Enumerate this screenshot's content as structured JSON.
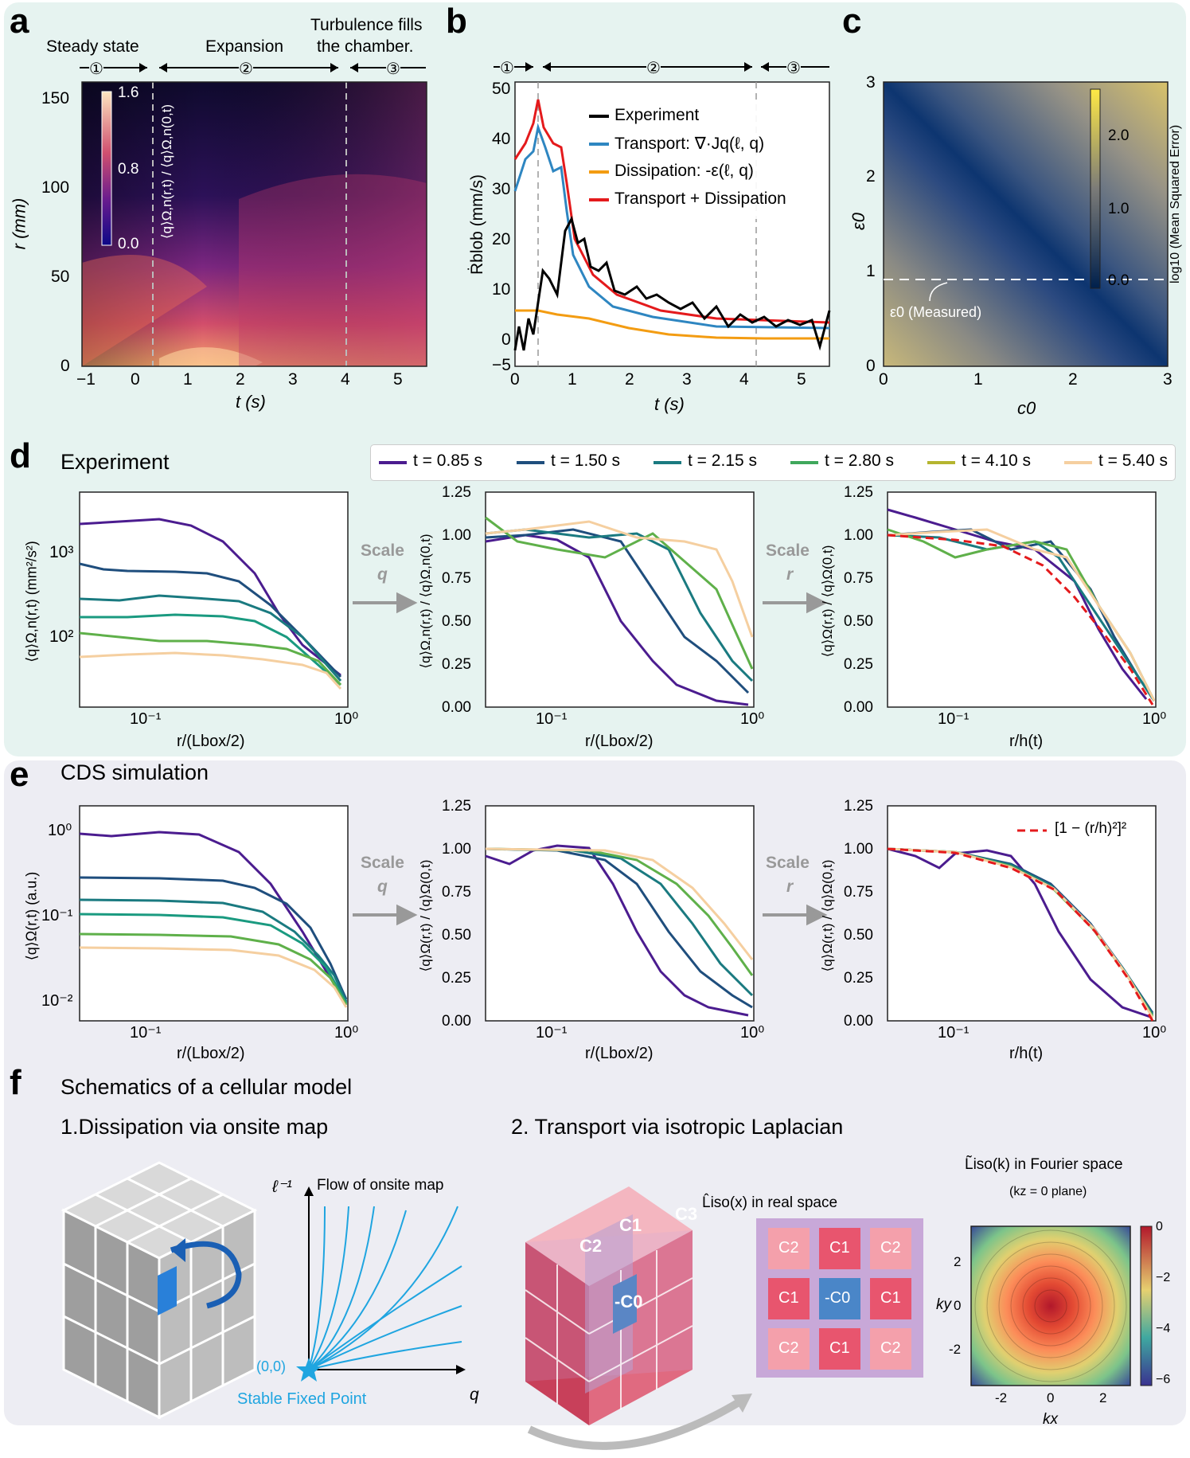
{
  "panels": {
    "a": "a",
    "b": "b",
    "c": "c",
    "d": "d",
    "e": "e",
    "f": "f"
  },
  "panel_a": {
    "phases": [
      "Steady state",
      "Expansion",
      "Turbulence fills",
      "the chamber."
    ],
    "phase_nums": [
      "①",
      "②",
      "③"
    ],
    "xlabel": "t (s)",
    "ylabel": "r (mm)",
    "xticks": [
      "−1",
      "0",
      "1",
      "2",
      "3",
      "4",
      "5"
    ],
    "yticks": [
      "0",
      "50",
      "100",
      "150"
    ],
    "cbar_ticks": [
      "1.6",
      "0.8",
      "0.0"
    ],
    "cbar_label": "⟨q⟩Ω,n(r,t) / ⟨q⟩Ω,n(0,t)"
  },
  "panel_b": {
    "phase_nums": [
      "①",
      "②",
      "③"
    ],
    "xlabel": "t (s)",
    "ylabel": "Ṙblob (mm/s)",
    "xticks": [
      "0",
      "1",
      "2",
      "3",
      "4",
      "5"
    ],
    "yticks": [
      "−5",
      "0",
      "10",
      "20",
      "30",
      "40",
      "50"
    ],
    "legend": [
      {
        "label": "Experiment",
        "color": "#000000"
      },
      {
        "label": "Transport: ∇·Jq(ℓ, q)",
        "color": "#2e86c1"
      },
      {
        "label": "Dissipation: -ε(ℓ, q)",
        "color": "#f39c12"
      },
      {
        "label": "Transport + Dissipation",
        "color": "#e41a1c"
      }
    ]
  },
  "panel_c": {
    "xlabel": "c0",
    "ylabel": "ε0",
    "xticks": [
      "0",
      "1",
      "2",
      "3"
    ],
    "yticks": [
      "0",
      "1",
      "2",
      "3"
    ],
    "cbar_ticks": [
      "2.0",
      "1.0",
      "0.0"
    ],
    "cbar_label": "log10 (Mean Squared Error)",
    "annotation": "ε0 (Measured)"
  },
  "panel_d": {
    "title": "Experiment",
    "legend": [
      {
        "label": "t = 0.85 s",
        "color": "#4b1c8f"
      },
      {
        "label": "t = 1.50 s",
        "color": "#1f4e7d"
      },
      {
        "label": "t = 2.15 s",
        "color": "#1a7a80"
      },
      {
        "label": "t = 2.80 s",
        "color": "#3fa85c"
      },
      {
        "label": "t = 4.10 s",
        "color": "#b5b530"
      },
      {
        "label": "t = 5.40 s",
        "color": "#f5cfa0"
      }
    ],
    "plot1": {
      "ylabel": "⟨q⟩Ω,n(r,t) (mm²/s²)",
      "xlabel": "r/(Lbox/2)",
      "yticks": [
        "10³",
        "10²"
      ],
      "xticks": [
        "10⁻¹",
        "10⁰"
      ]
    },
    "plot2": {
      "ylabel": "⟨q⟩Ω,n(r,t) / ⟨q⟩Ω,n(0,t)",
      "xlabel": "r/(Lbox/2)",
      "yticks": [
        "1.25",
        "1.00",
        "0.75",
        "0.50",
        "0.25",
        "0.00"
      ],
      "xticks": [
        "10⁻¹",
        "10⁰"
      ]
    },
    "plot3": {
      "ylabel": "⟨q⟩Ω(r,t) / ⟨q⟩Ω(0,t)",
      "xlabel": "r/h(t)",
      "yticks": [
        "1.25",
        "1.00",
        "0.75",
        "0.50",
        "0.25",
        "0.00"
      ],
      "xticks": [
        "10⁻¹",
        "10⁰"
      ]
    },
    "arrow1": [
      "Scale",
      "q"
    ],
    "arrow2": [
      "Scale",
      "r"
    ]
  },
  "panel_e": {
    "title": "CDS simulation",
    "plot1": {
      "ylabel": "⟨q⟩Ω(r,t) (a.u.)",
      "xlabel": "r/(Lbox/2)",
      "yticks": [
        "10⁰",
        "10⁻¹",
        "10⁻²"
      ],
      "xticks": [
        "10⁻¹",
        "10⁰"
      ]
    },
    "plot2": {
      "ylabel": "⟨q⟩Ω(r,t) / ⟨q⟩Ω(0,t)",
      "xlabel": "r/(Lbox/2)",
      "yticks": [
        "1.25",
        "1.00",
        "0.75",
        "0.50",
        "0.25",
        "0.00"
      ],
      "xticks": [
        "10⁻¹",
        "10⁰"
      ]
    },
    "plot3": {
      "ylabel": "⟨q⟩Ω(r,t) / ⟨q⟩Ω(0,t)",
      "xlabel": "r/h(t)",
      "yticks": [
        "1.25",
        "1.00",
        "0.75",
        "0.50",
        "0.25",
        "0.00"
      ],
      "xticks": [
        "10⁻¹",
        "10⁰"
      ],
      "fit_label": "[1 − (r/h)²]²"
    },
    "arrow1": [
      "Scale",
      "q"
    ],
    "arrow2": [
      "Scale",
      "r"
    ]
  },
  "panel_f": {
    "title": "Schematics of a cellular model",
    "sub1": "1.Dissipation via onsite map",
    "sub2": "2. Transport via isotropic Laplacian",
    "flow_title": "Flow of onsite map",
    "flow_y": "ℓ⁻¹",
    "flow_x": "q",
    "origin": "(0,0)",
    "fixed_point": "Stable Fixed Point",
    "cube_labels": [
      "C2",
      "C1",
      "C3",
      "-C0"
    ],
    "real_title": "L̂iso(x) in real space",
    "grid": [
      [
        "C2",
        "C1",
        "C2"
      ],
      [
        "C1",
        "-C0",
        "C1"
      ],
      [
        "C2",
        "C1",
        "C2"
      ]
    ],
    "fourier_title": "L̃iso(k) in Fourier space",
    "fourier_sub": "(kz = 0 plane)",
    "fourier_xlabel": "kx",
    "fourier_ylabel": "ky",
    "fourier_xticks": [
      "-2",
      "0",
      "2"
    ],
    "fourier_yticks": [
      "2",
      "0",
      "-2"
    ],
    "fourier_cbar": [
      "0",
      "−2",
      "−4",
      "−6"
    ]
  }
}
